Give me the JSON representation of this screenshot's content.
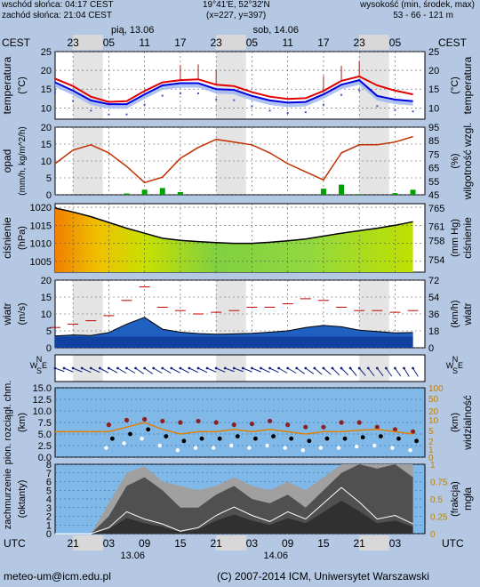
{
  "header": {
    "sunrise": "wschód słońca: 04:17 CEST",
    "sunset": "zachód słońca: 21:04 CEST",
    "coords": "19°41'E, 52°32'N",
    "grid": "(x=227, y=397)",
    "elev_title": "wysokość (min, środek, max)",
    "elev_values": "53 - 66 - 121 m"
  },
  "timebar": {
    "top_tz": "CEST",
    "bottom_tz": "UTC",
    "top_ticks": [
      "23",
      "05",
      "11",
      "17",
      "23",
      "05",
      "11",
      "17",
      "23",
      "05"
    ],
    "bottom_ticks": [
      "21",
      "03",
      "09",
      "15",
      "21",
      "03",
      "09",
      "15",
      "21",
      "03"
    ],
    "top_dates": [
      "pią, 13.06",
      "sob, 14.06"
    ],
    "bottom_dates": [
      "13.06",
      "14.06"
    ]
  },
  "footer": {
    "email": "meteo-um@icm.edu.pl",
    "copyright": "(C) 2007-2014 ICM, Uniwersytet Warszawski"
  },
  "colors": {
    "temp_red": "#e00000",
    "temp_blue": "#0000e0",
    "humidity": "#c03000",
    "precip": "#00a000",
    "visibility": "#e08000"
  },
  "chart_data": [
    {
      "type": "line",
      "id": "temperature",
      "ylabel": "temperatura",
      "ylabel2": "temperatura",
      "unit": "(°C)",
      "unit2": "(°C)",
      "ylim": [
        7,
        25
      ],
      "yticks": [
        10,
        15,
        20,
        25
      ],
      "x_hours": [
        0,
        3,
        6,
        9,
        12,
        15,
        18,
        21,
        24,
        27,
        30,
        33,
        36,
        39,
        42,
        45,
        48,
        51,
        54,
        57,
        60
      ],
      "series": [
        {
          "values": [
            17.8,
            15.8,
            13.0,
            11.6,
            11.8,
            14.5,
            16.8,
            17.4,
            17.6,
            16.2,
            15.8,
            14.2,
            13.0,
            12.4,
            12.6,
            14.5,
            17.2,
            18.4,
            16.0,
            14.6,
            13.6
          ]
        },
        {
          "values": [
            16.8,
            14.6,
            12.0,
            11.0,
            11.0,
            13.6,
            16.0,
            16.6,
            16.6,
            15.0,
            14.8,
            13.2,
            12.0,
            11.4,
            11.6,
            13.6,
            16.2,
            17.4,
            13.2,
            12.2,
            11.8
          ]
        }
      ]
    },
    {
      "type": "line",
      "id": "precip-humidity",
      "ylabel": "opad",
      "ylabel2": "wilgotność wzgl.",
      "unit": "(mm/h, kg/m^2/h)",
      "unit2": "(%)",
      "ylim": [
        0,
        20
      ],
      "yticks": [
        0,
        5,
        10,
        15,
        20
      ],
      "yticks2": [
        45,
        55,
        65,
        75,
        85,
        95
      ],
      "x_hours": [
        0,
        3,
        6,
        9,
        12,
        15,
        18,
        21,
        24,
        27,
        30,
        33,
        36,
        39,
        42,
        45,
        48,
        51,
        54,
        57,
        60
      ],
      "series": [
        {
          "values": [
            68,
            78,
            82,
            76,
            66,
            54,
            58,
            72,
            80,
            86,
            84,
            82,
            76,
            68,
            62,
            56,
            76,
            82,
            82,
            84,
            88
          ]
        }
      ],
      "precip_mm": [
        0,
        0,
        0,
        0,
        0.4,
        1.5,
        2.0,
        0.8,
        0,
        0,
        0,
        0,
        0,
        0,
        0,
        1.8,
        3.0,
        0.2,
        0,
        0.5,
        1.5
      ]
    },
    {
      "type": "area",
      "id": "pressure",
      "ylabel": "ciśnienie",
      "ylabel2": "ciśnienie",
      "unit": "(hPa)",
      "unit2": "(mm Hg)",
      "ylim": [
        1002,
        1021
      ],
      "yticks": [
        1005,
        1010,
        1015,
        1020
      ],
      "yticks2": [
        754,
        758,
        761,
        765
      ],
      "x_hours": [
        0,
        3,
        6,
        9,
        12,
        15,
        18,
        21,
        24,
        27,
        30,
        33,
        36,
        39,
        42,
        45,
        48,
        51,
        54,
        57,
        60
      ],
      "series": [
        {
          "values": [
            1019.8,
            1018.7,
            1017.4,
            1015.8,
            1014.2,
            1012.8,
            1011.4,
            1010.8,
            1010.5,
            1010.2,
            1010.0,
            1010.0,
            1010.3,
            1010.7,
            1011.2,
            1012.0,
            1012.8,
            1013.5,
            1014.2,
            1015.0,
            1016.0
          ]
        }
      ]
    },
    {
      "type": "area",
      "id": "wind",
      "ylabel": "wiatr",
      "ylabel2": "wiatr",
      "unit": "(m/s)",
      "unit2": "(km/h)",
      "ylim": [
        0,
        20
      ],
      "yticks": [
        0,
        5,
        10,
        15,
        20
      ],
      "yticks2": [
        0,
        18,
        36,
        54,
        72
      ],
      "x_hours": [
        0,
        3,
        6,
        9,
        12,
        15,
        18,
        21,
        24,
        27,
        30,
        33,
        36,
        39,
        42,
        45,
        48,
        51,
        54,
        57,
        60
      ],
      "series": [
        {
          "values": [
            3.5,
            3.8,
            3.6,
            4.5,
            7.0,
            9.0,
            5.5,
            4.6,
            4.2,
            4.0,
            4.1,
            4.3,
            4.6,
            5.0,
            6.0,
            6.6,
            6.2,
            5.2,
            4.8,
            4.4,
            4.5
          ]
        },
        {
          "values": [
            6.0,
            7.0,
            8.0,
            9.5,
            14.0,
            18.0,
            12.0,
            11.0,
            10.0,
            10.5,
            11.0,
            12.0,
            12.0,
            13.0,
            14.5,
            14.0,
            12.0,
            11.0,
            11.0,
            10.5,
            11.0
          ]
        }
      ]
    },
    {
      "type": "scatter",
      "id": "wind-direction",
      "x_hours": [
        0,
        3,
        6,
        9,
        12,
        15,
        18,
        21,
        24,
        27,
        30,
        33,
        36,
        39,
        42,
        45,
        48,
        51,
        54,
        57,
        60
      ],
      "direction_deg": [
        290,
        292,
        295,
        298,
        300,
        305,
        300,
        298,
        295,
        293,
        290,
        292,
        295,
        300,
        305,
        310,
        315,
        320,
        322,
        325,
        328
      ],
      "ylabel": "N S W E",
      "ylabel2": "N S W E"
    },
    {
      "type": "scatter",
      "id": "cloudbase-visibility",
      "ylabel": "pion. rozciągł. chm.",
      "ylabel2": "widzialność",
      "unit": "(km)",
      "unit2": "(km)",
      "ylim": [
        0,
        15
      ],
      "yticks": [
        "0.0",
        "2.5",
        "5.0",
        "7.5",
        "10.0",
        "12.5",
        "15.0"
      ],
      "yticks2": [
        0,
        1,
        2,
        5,
        10,
        20,
        50,
        100
      ],
      "x_hours": [
        0,
        3,
        6,
        9,
        12,
        15,
        18,
        21,
        24,
        27,
        30,
        33,
        36,
        39,
        42,
        45,
        48,
        51,
        54,
        57,
        60
      ],
      "series": [
        {
          "values": [
            8.5,
            6.5,
            6.0,
            7.0,
            8.0,
            8.2,
            7.8,
            7.5,
            7.8,
            7.5,
            7.0,
            7.2,
            7.8,
            7.0,
            6.5,
            6.5,
            7.5,
            7.5,
            6.5,
            6.0,
            5.5
          ]
        },
        {
          "values": [
            5.5,
            5.5,
            5.5,
            5.5,
            6.5,
            7.5,
            6.0,
            5.0,
            5.5,
            5.5,
            6.0,
            5.5,
            6.0,
            5.5,
            5.0,
            5.5,
            5.5,
            5.8,
            6.0,
            5.5,
            5.0
          ]
        }
      ]
    },
    {
      "type": "area",
      "id": "cloud-fog",
      "ylabel": "zachmurzenie",
      "ylabel2": "mgła",
      "unit": "(oktanty)",
      "unit2": "(frakcja)",
      "ylim": [
        0,
        8
      ],
      "yticks": [
        0,
        1,
        2,
        3,
        4,
        5,
        6,
        7,
        8
      ],
      "yticks2": [
        "0",
        "0.25",
        "0.5",
        "0.75",
        "1"
      ],
      "x_hours": [
        0,
        3,
        6,
        9,
        12,
        15,
        18,
        21,
        24,
        27,
        30,
        33,
        36,
        39,
        42,
        45,
        48,
        51,
        54,
        57,
        60
      ],
      "series": [
        {
          "values": [
            0,
            0,
            0,
            2.0,
            5.5,
            6.5,
            5.0,
            3.0,
            3.0,
            4.5,
            5.5,
            4.0,
            3.5,
            4.5,
            3.0,
            5.0,
            7.0,
            8.0,
            7.5,
            8.0,
            6.5
          ]
        },
        {
          "values": [
            0,
            0,
            0,
            3.5,
            7.0,
            7.8,
            6.0,
            5.5,
            5.0,
            5.5,
            6.5,
            5.5,
            5.0,
            6.0,
            5.0,
            6.5,
            8.0,
            8.0,
            8.0,
            8.0,
            8.0
          ]
        },
        {
          "values": [
            0,
            0,
            0,
            0.5,
            1.8,
            1.2,
            0.8,
            0.2,
            0.5,
            1.5,
            2.2,
            1.5,
            1.0,
            1.8,
            1.2,
            2.5,
            3.8,
            2.6,
            1.2,
            1.5,
            0.8
          ]
        }
      ]
    }
  ]
}
